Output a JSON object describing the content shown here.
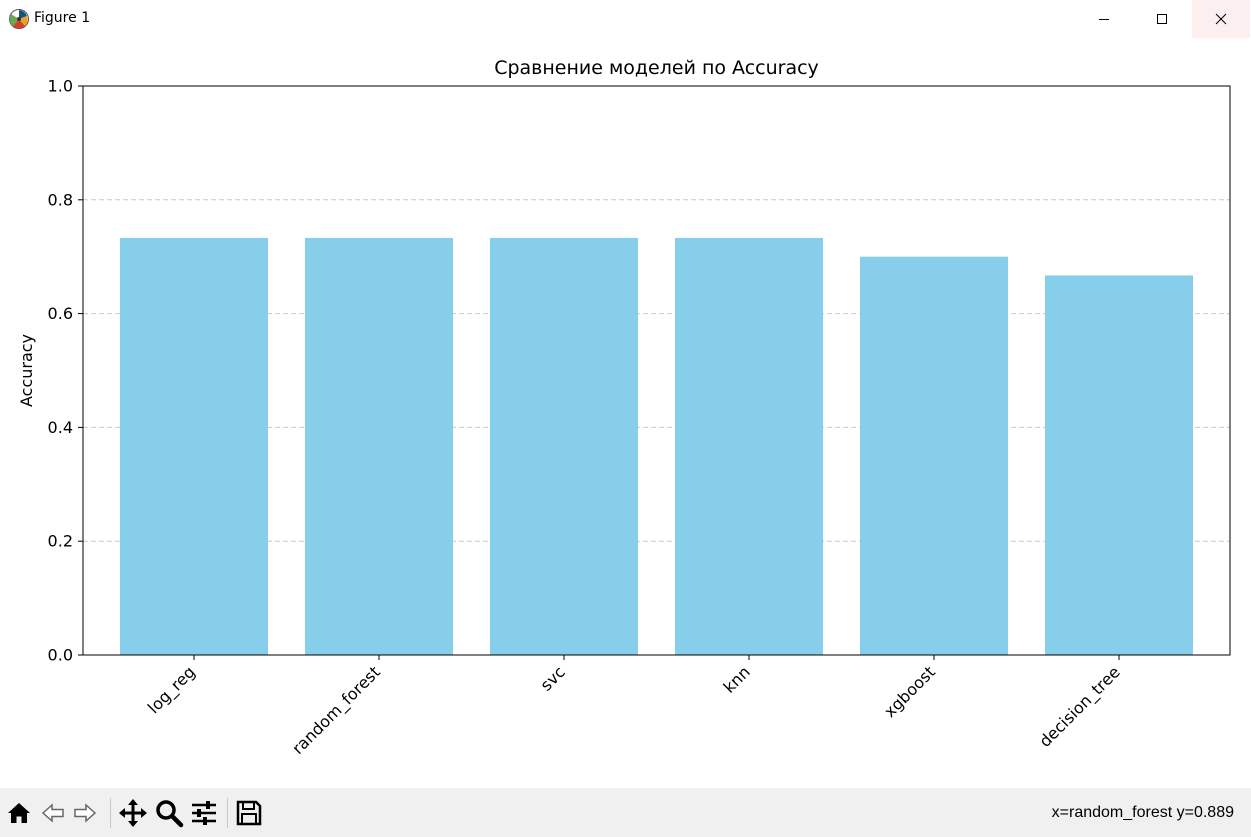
{
  "window": {
    "title": "Figure 1"
  },
  "toolbar": {
    "buttons": [
      "home-icon",
      "back-icon",
      "forward-icon",
      "pan-icon",
      "zoom-icon",
      "configure-icon",
      "save-icon"
    ],
    "status_text": "x=random_forest y=0.889"
  },
  "chart_data": {
    "type": "bar",
    "title": "Сравнение моделей по Accuracy",
    "xlabel": "",
    "ylabel": "Accuracy",
    "categories": [
      "log_reg",
      "random_forest",
      "svc",
      "knn",
      "xgboost",
      "decision_tree"
    ],
    "values": [
      0.733,
      0.733,
      0.733,
      0.733,
      0.7,
      0.667
    ],
    "ylim": [
      0.0,
      1.0
    ],
    "yticks": [
      "0.0",
      "0.2",
      "0.4",
      "0.6",
      "0.8",
      "1.0"
    ],
    "grid": "y-dashed",
    "bar_color": "#87ceeb",
    "x_tick_rotation": 45
  }
}
